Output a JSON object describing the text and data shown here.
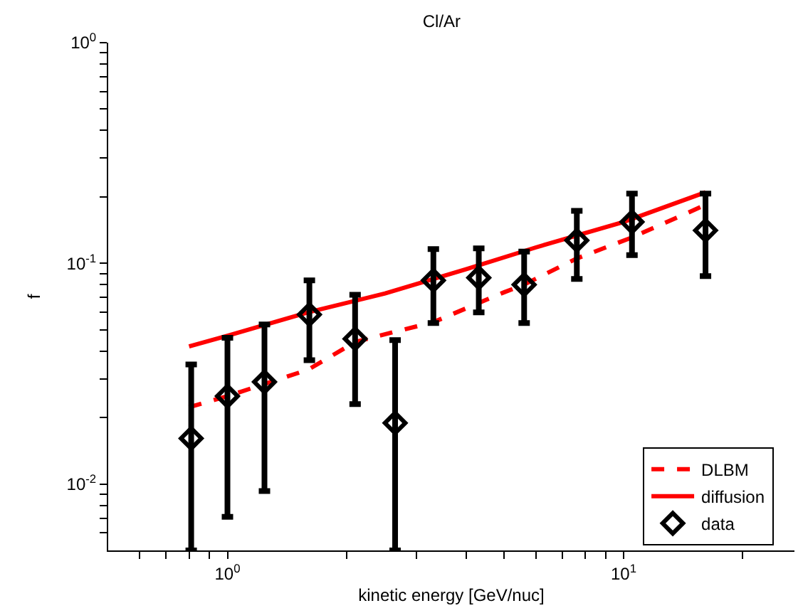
{
  "chart_data": {
    "type": "line",
    "title": "Cl/Ar",
    "xlabel": "kinetic energy [GeV/nuc]",
    "ylabel": "f",
    "log": "xy",
    "legend": "bottom right",
    "xlim": [
      0.5,
      27
    ],
    "ylim": [
      0.005,
      1
    ],
    "xticks": [
      {
        "value": 0.6,
        "label": null
      },
      {
        "value": 0.7,
        "label": null
      },
      {
        "value": 0.8,
        "label": null
      },
      {
        "value": 0.9,
        "label": null
      },
      {
        "value": 1,
        "label": "10$^{0}$"
      },
      {
        "value": 2,
        "label": null
      },
      {
        "value": 3,
        "label": null
      },
      {
        "value": 4,
        "label": null
      },
      {
        "value": 5,
        "label": null
      },
      {
        "value": 6,
        "label": null
      },
      {
        "value": 7,
        "label": null
      },
      {
        "value": 8,
        "label": null
      },
      {
        "value": 9,
        "label": null
      },
      {
        "value": 10,
        "label": "10$^{1}$"
      },
      {
        "value": 20,
        "label": null
      }
    ],
    "yticks": [
      {
        "value": 0.006,
        "label": null
      },
      {
        "value": 0.007,
        "label": null
      },
      {
        "value": 0.008,
        "label": null
      },
      {
        "value": 0.009,
        "label": null
      },
      {
        "value": 0.01,
        "label": "10$^{-2}$"
      },
      {
        "value": 0.02,
        "label": null
      },
      {
        "value": 0.03,
        "label": null
      },
      {
        "value": 0.04,
        "label": null
      },
      {
        "value": 0.05,
        "label": null
      },
      {
        "value": 0.06,
        "label": null
      },
      {
        "value": 0.07,
        "label": null
      },
      {
        "value": 0.08,
        "label": null
      },
      {
        "value": 0.09,
        "label": null
      },
      {
        "value": 0.1,
        "label": "10$^{-1}$"
      },
      {
        "value": 0.2,
        "label": null
      },
      {
        "value": 0.3,
        "label": null
      },
      {
        "value": 0.4,
        "label": null
      },
      {
        "value": 0.5,
        "label": null
      },
      {
        "value": 0.6,
        "label": null
      },
      {
        "value": 0.7,
        "label": null
      },
      {
        "value": 0.8,
        "label": null
      },
      {
        "value": 0.9,
        "label": null
      },
      {
        "value": 1,
        "label": "10$^{0}$"
      }
    ],
    "series": [
      {
        "name": "DLBM",
        "line_style": "dashed",
        "marker": "none",
        "color": "#ff0000",
        "x": [
          0.8,
          1.0,
          1.6,
          2.1,
          2.65,
          3.3,
          4.3,
          5.0,
          5.6,
          7.6,
          10.5,
          16.1
        ],
        "values": [
          0.0223,
          0.025,
          0.033,
          0.044,
          0.049,
          0.054,
          0.066,
          0.074,
          0.08,
          0.105,
          0.131,
          0.184
        ]
      },
      {
        "name": "diffusion",
        "line_style": "solid",
        "marker": "none",
        "color": "#ff0000",
        "x": [
          0.8,
          1.0,
          1.6,
          2.5,
          4.0,
          6.0,
          10.0,
          16.1
        ],
        "values": [
          0.042,
          0.047,
          0.06,
          0.073,
          0.094,
          0.118,
          0.154,
          0.21
        ]
      },
      {
        "name": "data",
        "type": "scatter",
        "marker": "diamond",
        "color": "#000000",
        "x": [
          0.81,
          1.0,
          1.24,
          1.61,
          2.1,
          2.65,
          3.31,
          4.31,
          5.61,
          7.62,
          10.5,
          16.1
        ],
        "values": [
          0.0161,
          0.025,
          0.029,
          0.0586,
          0.0455,
          0.0189,
          0.0837,
          0.086,
          0.08,
          0.127,
          0.154,
          0.141
        ],
        "errors": [
          [
            0.005,
            0.0348
          ],
          [
            0.0071,
            0.046
          ],
          [
            0.0093,
            0.0528
          ],
          [
            0.0364,
            0.0837
          ],
          [
            0.023,
            0.072
          ],
          [
            0.005,
            0.0449
          ],
          [
            0.0536,
            0.116
          ],
          [
            0.06,
            0.117
          ],
          [
            0.0536,
            0.113
          ],
          [
            0.085,
            0.173
          ],
          [
            0.109,
            0.207
          ],
          [
            0.0875,
            0.207
          ]
        ]
      }
    ]
  }
}
